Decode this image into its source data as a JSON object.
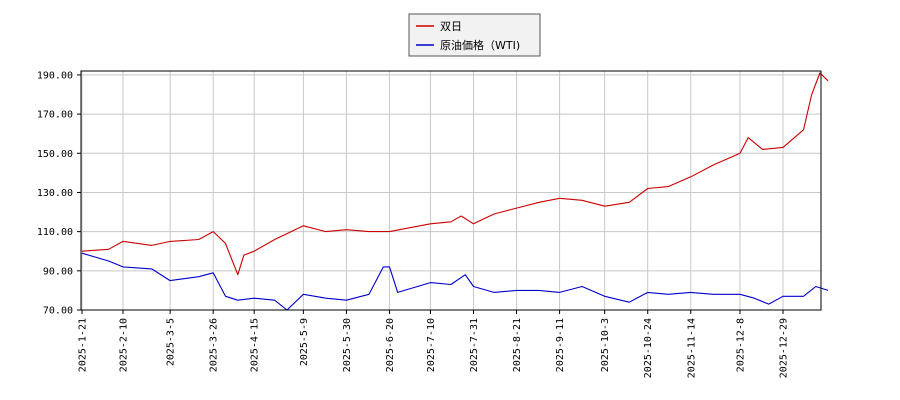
{
  "chart_data": {
    "type": "line",
    "x_tick_labels": [
      "2025-1-21",
      "2025-2-10",
      "2025-3-5",
      "2025-3-26",
      "2025-4-15",
      "2025-5-9",
      "2025-5-30",
      "2025-6-20",
      "2025-7-10",
      "2025-7-31",
      "2025-8-21",
      "2025-9-11",
      "2025-10-3",
      "2025-10-24",
      "2025-11-14",
      "2025-12-8",
      "2025-12-29"
    ],
    "y_tick_labels": [
      "70.00",
      "90.00",
      "110.00",
      "130.00",
      "150.00",
      "170.00",
      "190.00"
    ],
    "ylim": [
      70,
      192
    ],
    "grid": true,
    "legend_position": "top-center",
    "series": [
      {
        "name": "双日",
        "color": "#cc0000",
        "x": [
          "2025-1-21",
          "2025-2-3",
          "2025-2-10",
          "2025-2-24",
          "2025-3-5",
          "2025-3-19",
          "2025-3-26",
          "2025-4-1",
          "2025-4-7",
          "2025-4-10",
          "2025-4-15",
          "2025-4-25",
          "2025-5-9",
          "2025-5-20",
          "2025-5-30",
          "2025-6-10",
          "2025-6-20",
          "2025-6-30",
          "2025-7-10",
          "2025-7-20",
          "2025-7-25",
          "2025-7-31",
          "2025-8-10",
          "2025-8-21",
          "2025-9-1",
          "2025-9-11",
          "2025-9-22",
          "2025-10-3",
          "2025-10-15",
          "2025-10-24",
          "2025-11-3",
          "2025-11-14",
          "2025-11-25",
          "2025-12-8",
          "2025-12-12",
          "2025-12-19",
          "2025-12-29",
          "2026-1-8",
          "2026-1-12",
          "2026-1-16",
          "2026-1-20"
        ],
        "values": [
          100,
          101,
          105,
          103,
          105,
          106,
          110,
          104,
          88,
          98,
          100,
          106,
          113,
          110,
          111,
          110,
          110,
          112,
          114,
          115,
          118,
          114,
          119,
          122,
          125,
          127,
          126,
          123,
          125,
          132,
          133,
          138,
          144,
          150,
          158,
          152,
          153,
          162,
          180,
          191,
          187
        ]
      },
      {
        "name": "原油価格（WTI)",
        "color": "#0000cc",
        "x": [
          "2025-1-21",
          "2025-2-3",
          "2025-2-10",
          "2025-2-24",
          "2025-3-5",
          "2025-3-19",
          "2025-3-26",
          "2025-4-1",
          "2025-4-7",
          "2025-4-15",
          "2025-4-25",
          "2025-5-1",
          "2025-5-9",
          "2025-5-20",
          "2025-5-30",
          "2025-6-10",
          "2025-6-17",
          "2025-6-20",
          "2025-6-24",
          "2025-7-10",
          "2025-7-20",
          "2025-7-27",
          "2025-7-31",
          "2025-8-10",
          "2025-8-21",
          "2025-9-1",
          "2025-9-11",
          "2025-9-22",
          "2025-10-3",
          "2025-10-15",
          "2025-10-24",
          "2025-11-3",
          "2025-11-14",
          "2025-11-25",
          "2025-12-8",
          "2025-12-15",
          "2025-12-22",
          "2025-12-29",
          "2026-1-8",
          "2026-1-14",
          "2026-1-20"
        ],
        "values": [
          99,
          95,
          92,
          91,
          85,
          87,
          89,
          77,
          75,
          76,
          75,
          70,
          78,
          76,
          75,
          78,
          92,
          92,
          79,
          84,
          83,
          88,
          82,
          79,
          80,
          80,
          79,
          82,
          77,
          74,
          79,
          78,
          79,
          78,
          78,
          76,
          73,
          77,
          77,
          82,
          80
        ]
      }
    ]
  }
}
